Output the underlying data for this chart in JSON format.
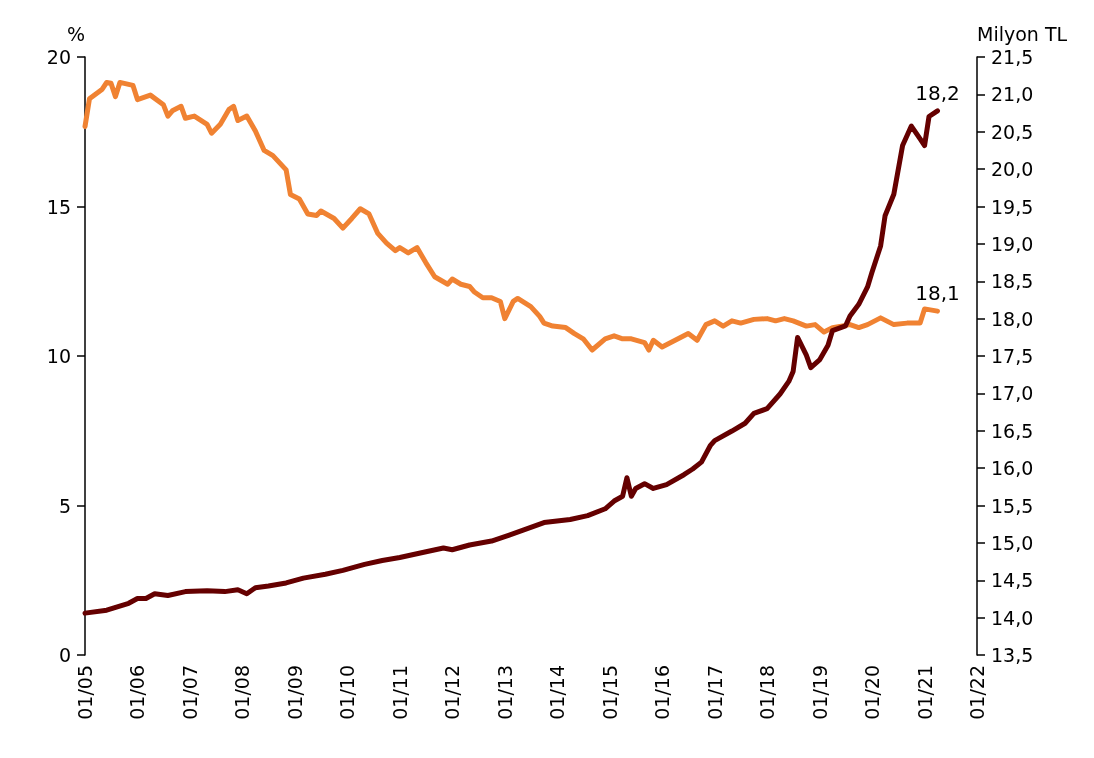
{
  "chart_data": {
    "type": "line",
    "ylabel": "%",
    "y2label": "Milyon TL",
    "xlim": [
      "2005-01",
      "2022-01"
    ],
    "xticks": [
      {
        "value": "2005-01",
        "label": "01/05"
      },
      {
        "value": "2006-01",
        "label": "01/06"
      },
      {
        "value": "2007-01",
        "label": "01/07"
      },
      {
        "value": "2008-01",
        "label": "01/08"
      },
      {
        "value": "2009-01",
        "label": "01/09"
      },
      {
        "value": "2010-01",
        "label": "01/10"
      },
      {
        "value": "2011-01",
        "label": "01/11"
      },
      {
        "value": "2012-01",
        "label": "01/12"
      },
      {
        "value": "2013-01",
        "label": "01/13"
      },
      {
        "value": "2014-01",
        "label": "01/14"
      },
      {
        "value": "2015-01",
        "label": "01/15"
      },
      {
        "value": "2016-01",
        "label": "01/16"
      },
      {
        "value": "2017-01",
        "label": "01/17"
      },
      {
        "value": "2018-01",
        "label": "01/18"
      },
      {
        "value": "2019-01",
        "label": "01/19"
      },
      {
        "value": "2020-01",
        "label": "01/20"
      },
      {
        "value": "2021-01",
        "label": "01/21"
      },
      {
        "value": "2022-01",
        "label": "01/22"
      }
    ],
    "ylim": [
      0,
      20
    ],
    "yticks": [
      0,
      5,
      10,
      15,
      20
    ],
    "y2lim": [
      13.5,
      21.5
    ],
    "y2ticks": [
      {
        "value": 13.5,
        "label": "13,5"
      },
      {
        "value": 14,
        "label": "14,0"
      },
      {
        "value": 14.5,
        "label": "14,5"
      },
      {
        "value": 15,
        "label": "15,0"
      },
      {
        "value": 15.5,
        "label": "15,5"
      },
      {
        "value": 16,
        "label": "16,0"
      },
      {
        "value": 16.5,
        "label": "16,5"
      },
      {
        "value": 17,
        "label": "17,0"
      },
      {
        "value": 17.5,
        "label": "17,5"
      },
      {
        "value": 18,
        "label": "18,0"
      },
      {
        "value": 18.5,
        "label": "18,5"
      },
      {
        "value": 19,
        "label": "19,0"
      },
      {
        "value": 19.5,
        "label": "19,5"
      },
      {
        "value": 20,
        "label": "20,0"
      },
      {
        "value": 20.5,
        "label": "20,5"
      },
      {
        "value": 21,
        "label": "21,0"
      },
      {
        "value": 21.5,
        "label": "21,5"
      }
    ],
    "grid": false,
    "marker": "none",
    "line_style": "solid",
    "series": [
      {
        "color": "#f08232",
        "axis": "y2",
        "x": [
          "2005-01",
          "2005-02",
          "2005-05",
          "2005-06",
          "2005-07",
          "2005-08",
          "2005-09",
          "2005-12",
          "2006-01",
          "2006-04",
          "2006-07",
          "2006-08",
          "2006-09",
          "2006-11",
          "2006-12",
          "2007-02",
          "2007-05",
          "2007-06",
          "2007-08",
          "2007-10",
          "2007-11",
          "2007-12",
          "2008-02",
          "2008-04",
          "2008-06",
          "2008-08",
          "2008-11",
          "2008-12",
          "2009-02",
          "2009-04",
          "2009-06",
          "2009-07",
          "2009-10",
          "2009-12",
          "2010-02",
          "2010-04",
          "2010-06",
          "2010-08",
          "2010-10",
          "2010-12",
          "2011-01",
          "2011-03",
          "2011-05",
          "2011-07",
          "2011-09",
          "2011-12",
          "2012-01",
          "2012-03",
          "2012-05",
          "2012-06",
          "2012-08",
          "2012-10",
          "2012-12",
          "2013-01",
          "2013-03",
          "2013-04",
          "2013-07",
          "2013-09",
          "2013-10",
          "2013-12",
          "2014-03",
          "2014-05",
          "2014-07",
          "2014-09",
          "2014-12",
          "2015-02",
          "2015-04",
          "2015-06",
          "2015-09",
          "2015-10",
          "2015-11",
          "2016-01",
          "2016-04",
          "2016-07",
          "2016-09",
          "2016-11",
          "2017-01",
          "2017-03",
          "2017-05",
          "2017-07",
          "2017-10",
          "2018-01",
          "2018-03",
          "2018-05",
          "2018-07",
          "2018-10",
          "2018-12",
          "2019-02",
          "2019-04",
          "2019-08",
          "2019-10",
          "2019-12",
          "2020-03",
          "2020-06",
          "2020-09",
          "2020-12",
          "2021-01",
          "2021-04"
        ],
        "values": [
          20.57,
          20.94,
          21.07,
          21.16,
          21.15,
          20.97,
          21.16,
          21.12,
          20.93,
          20.99,
          20.86,
          20.71,
          20.78,
          20.84,
          20.68,
          20.71,
          20.6,
          20.48,
          20.6,
          20.8,
          20.84,
          20.65,
          20.71,
          20.51,
          20.25,
          20.18,
          19.99,
          19.66,
          19.6,
          19.4,
          19.38,
          19.44,
          19.34,
          19.21,
          19.34,
          19.47,
          19.4,
          19.14,
          19.01,
          18.91,
          18.95,
          18.88,
          18.95,
          18.75,
          18.56,
          18.46,
          18.53,
          18.46,
          18.43,
          18.36,
          18.28,
          18.28,
          18.23,
          18.0,
          18.23,
          18.27,
          18.16,
          18.03,
          17.94,
          17.9,
          17.88,
          17.8,
          17.73,
          17.58,
          17.73,
          17.77,
          17.73,
          17.73,
          17.68,
          17.58,
          17.71,
          17.62,
          17.71,
          17.8,
          17.71,
          17.92,
          17.97,
          17.9,
          17.97,
          17.94,
          17.99,
          18.0,
          17.97,
          18.0,
          17.97,
          17.9,
          17.92,
          17.82,
          17.88,
          17.92,
          17.88,
          17.92,
          18.01,
          17.92,
          17.94,
          17.94,
          18.13,
          18.1
        ]
      },
      {
        "color": "#650000",
        "x": [
          "2005-01",
          "2005-06",
          "2005-11",
          "2006-01",
          "2006-03",
          "2006-05",
          "2006-08",
          "2006-12",
          "2007-05",
          "2007-09",
          "2007-12",
          "2008-02",
          "2008-04",
          "2008-07",
          "2008-11",
          "2009-03",
          "2009-08",
          "2009-12",
          "2010-05",
          "2010-09",
          "2011-01",
          "2011-06",
          "2011-11",
          "2012-01",
          "2012-05",
          "2012-10",
          "2013-02",
          "2013-07",
          "2013-10",
          "2014-04",
          "2014-08",
          "2014-12",
          "2015-02",
          "2015-04",
          "2015-05",
          "2015-06",
          "2015-07",
          "2015-09",
          "2015-11",
          "2016-02",
          "2016-06",
          "2016-08",
          "2016-10",
          "2016-12",
          "2017-01",
          "2017-05",
          "2017-08",
          "2017-10",
          "2018-01",
          "2018-04",
          "2018-06",
          "2018-07",
          "2018-08",
          "2018-10",
          "2018-11",
          "2019-01",
          "2019-03",
          "2019-04",
          "2019-07",
          "2019-08",
          "2019-10",
          "2019-12",
          "2020-01",
          "2020-03",
          "2020-04",
          "2020-06",
          "2020-08",
          "2020-10",
          "2020-12",
          "2021-01",
          "2021-02",
          "2021-04"
        ],
        "values": [
          1.4,
          1.5,
          1.73,
          1.89,
          1.89,
          2.05,
          1.99,
          2.12,
          2.15,
          2.12,
          2.18,
          2.05,
          2.25,
          2.31,
          2.41,
          2.57,
          2.7,
          2.83,
          3.03,
          3.16,
          3.26,
          3.42,
          3.58,
          3.52,
          3.68,
          3.81,
          4.01,
          4.27,
          4.43,
          4.53,
          4.66,
          4.89,
          5.15,
          5.31,
          5.93,
          5.31,
          5.57,
          5.73,
          5.57,
          5.7,
          6.03,
          6.22,
          6.45,
          7.0,
          7.17,
          7.49,
          7.75,
          8.08,
          8.24,
          8.73,
          9.15,
          9.48,
          10.62,
          10.03,
          9.61,
          9.87,
          10.36,
          10.85,
          11.01,
          11.34,
          11.73,
          12.31,
          12.8,
          13.68,
          14.69,
          15.41,
          17.04,
          17.69,
          17.26,
          17.04,
          18.01,
          18.2
        ]
      }
    ],
    "annotations": [
      "18,1",
      "18,2"
    ]
  }
}
